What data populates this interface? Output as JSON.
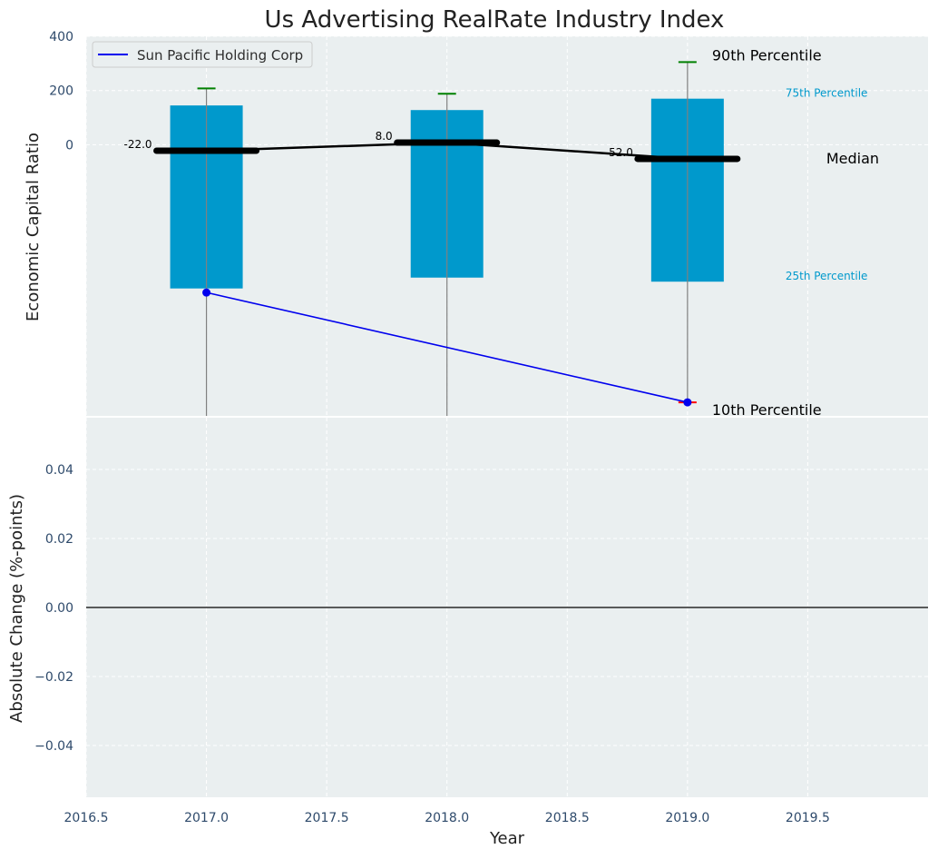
{
  "colors": {
    "panel_bg": "#eaeff0",
    "box_fill": "#0099cc",
    "whisker_line": "#808080",
    "whisker_cap_top": "#008000",
    "whisker_cap_bottom": "#ff0000",
    "median_line": "#000000",
    "company_line": "#0000ee",
    "tick_text": "#2e4a6b",
    "percentile_small_text": "#0099cc",
    "title_text": "#222222"
  },
  "chart_data": [
    {
      "type": "box",
      "title": "Us Advertising RealRate Industry Index",
      "xlabel": "",
      "ylabel": "Economic Capital Ratio",
      "xlim": [
        2016.5,
        2020.0
      ],
      "ylim": [
        -1000,
        400
      ],
      "x_ticks": [
        2016.5,
        2017.0,
        2017.5,
        2018.0,
        2018.5,
        2019.0,
        2019.5
      ],
      "y_ticks": [
        0,
        200,
        400
      ],
      "grid": true,
      "legend": {
        "position": "top-left",
        "entries": [
          "Sun Pacific Holding Corp"
        ]
      },
      "boxes": [
        {
          "x": 2017.0,
          "p10": -1000,
          "p25": -530,
          "median": -22,
          "p75": 145,
          "p90": 208,
          "median_label": "-22.0"
        },
        {
          "x": 2018.0,
          "p10": -1000,
          "p25": -490,
          "median": 8,
          "p75": 128,
          "p90": 188,
          "median_label": "8.0"
        },
        {
          "x": 2019.0,
          "p10": -950,
          "p25": -505,
          "median": -52,
          "p75": 170,
          "p90": 305,
          "median_label": "-52.0"
        }
      ],
      "median_series": {
        "x": [
          2017.0,
          2018.0,
          2019.0
        ],
        "y": [
          -22,
          8,
          -52
        ]
      },
      "series": [
        {
          "name": "Sun Pacific Holding Corp",
          "x": [
            2017.0,
            2019.0
          ],
          "y": [
            -545,
            -950
          ]
        }
      ],
      "annotations": {
        "p90": "90th Percentile",
        "p75": "75th Percentile",
        "median": "Median",
        "p25": "25th Percentile",
        "p10": "10th Percentile"
      }
    },
    {
      "type": "line",
      "xlabel": "Year",
      "ylabel": "Absolute Change (%-points)",
      "xlim": [
        2016.5,
        2020.0
      ],
      "ylim": [
        -0.055,
        0.055
      ],
      "x_ticks": [
        2016.5,
        2017.0,
        2017.5,
        2018.0,
        2018.5,
        2019.0,
        2019.5
      ],
      "x_tick_labels": [
        "2016.5",
        "2017.0",
        "2017.5",
        "2018.0",
        "2018.5",
        "2019.0",
        "2019.5"
      ],
      "y_ticks": [
        0.04,
        0.02,
        0.0,
        -0.02,
        -0.04
      ],
      "y_tick_labels": [
        "0.04",
        "0.02",
        "0.00",
        "−0.02",
        "−0.04"
      ],
      "grid": true,
      "zero_line": 0.0,
      "series": []
    }
  ]
}
